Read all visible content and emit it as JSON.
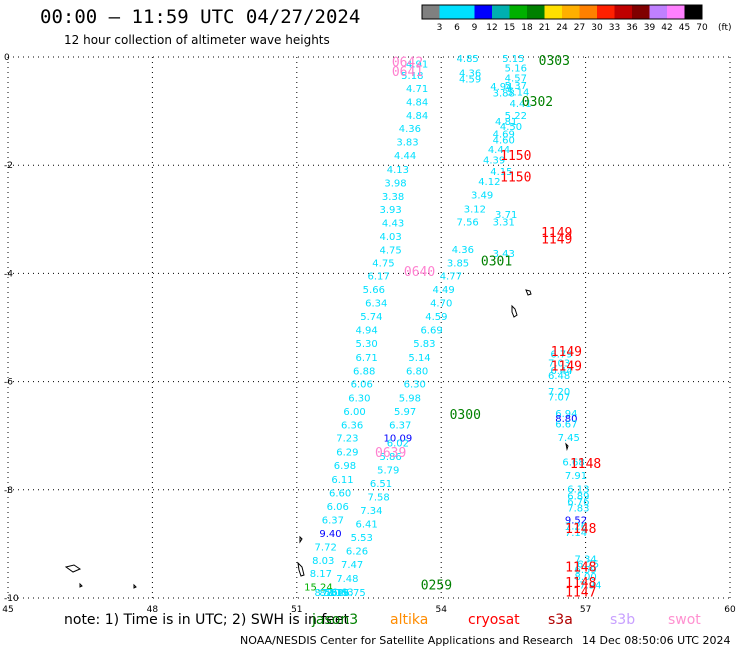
{
  "header": {
    "title": "00:00 – 11:59 UTC 04/27/2024",
    "subtitle": "12 hour collection of altimeter wave heights"
  },
  "footer": {
    "note": "note: 1) Time is in UTC; 2) SWH is in feet",
    "credit": "NOAA/NESDIS Center for Satellite Applications and Research",
    "timestamp": "14 Dec 08:50:06 UTC 2024"
  },
  "satellites": [
    {
      "name": "jason3",
      "color": "#008000"
    },
    {
      "name": "altika",
      "color": "#ff8c00"
    },
    {
      "name": "cryosat",
      "color": "#ff0000"
    },
    {
      "name": "s3a",
      "color": "#b00000"
    },
    {
      "name": "s3b",
      "color": "#c8a0ff"
    },
    {
      "name": "swot",
      "color": "#ff90d0"
    }
  ],
  "colorbar": {
    "labels": [
      "3",
      "6",
      "9",
      "12",
      "15",
      "18",
      "21",
      "24",
      "27",
      "30",
      "33",
      "36",
      "39",
      "42",
      "45",
      "70"
    ],
    "unit": "(ft)",
    "colors": [
      "#808080",
      "#00e0ff",
      "#00e0ff",
      "#0000ff",
      "#00b0b0",
      "#00b000",
      "#008000",
      "#ffe000",
      "#ffb000",
      "#ff8000",
      "#ff2000",
      "#c00000",
      "#800000",
      "#c080ff",
      "#ff80ff",
      "#000000"
    ]
  },
  "chart_data": {
    "type": "scatter",
    "xlim": [
      45,
      60
    ],
    "ylim": [
      -10,
      0
    ],
    "xticks": [
      "45",
      "48",
      "51",
      "54",
      "57",
      "60"
    ],
    "yticks": [
      "0",
      "-2",
      "-4",
      "-6",
      "-8",
      "-10"
    ],
    "grid": true,
    "labels": [
      {
        "x": 54.55,
        "y": -0.09,
        "t": "4.85",
        "c": "#00e0ff"
      },
      {
        "x": 55.5,
        "y": -0.09,
        "t": "5.15",
        "c": "#00e0ff"
      },
      {
        "x": 55.55,
        "y": -0.27,
        "t": "5.16",
        "c": "#00e0ff"
      },
      {
        "x": 54.6,
        "y": -0.36,
        "t": "4.36",
        "c": "#00e0ff"
      },
      {
        "x": 55.55,
        "y": -0.45,
        "t": "4.57",
        "c": "#00e0ff"
      },
      {
        "x": 54.6,
        "y": -0.47,
        "t": "4.59",
        "c": "#00e0ff"
      },
      {
        "x": 53.5,
        "y": -0.19,
        "t": "4.91",
        "c": "#00e0ff"
      },
      {
        "x": 53.4,
        "y": -0.41,
        "t": "5.18",
        "c": "#00e0ff"
      },
      {
        "x": 53.5,
        "y": -0.65,
        "t": "4.71",
        "c": "#00e0ff"
      },
      {
        "x": 53.5,
        "y": -0.9,
        "t": "4.84",
        "c": "#00e0ff"
      },
      {
        "x": 53.5,
        "y": -1.15,
        "t": "4.84",
        "c": "#00e0ff"
      },
      {
        "x": 53.35,
        "y": -1.39,
        "t": "4.36",
        "c": "#00e0ff"
      },
      {
        "x": 53.3,
        "y": -1.64,
        "t": "3.83",
        "c": "#00e0ff"
      },
      {
        "x": 53.25,
        "y": -1.89,
        "t": "4.44",
        "c": "#00e0ff"
      },
      {
        "x": 53.1,
        "y": -2.14,
        "t": "4.13",
        "c": "#00e0ff"
      },
      {
        "x": 53.05,
        "y": -2.39,
        "t": "3.98",
        "c": "#00e0ff"
      },
      {
        "x": 53.0,
        "y": -2.64,
        "t": "3.38",
        "c": "#00e0ff"
      },
      {
        "x": 52.95,
        "y": -2.88,
        "t": "3.93",
        "c": "#00e0ff"
      },
      {
        "x": 53.0,
        "y": -3.13,
        "t": "4.43",
        "c": "#00e0ff"
      },
      {
        "x": 52.95,
        "y": -3.38,
        "t": "4.03",
        "c": "#00e0ff"
      },
      {
        "x": 52.95,
        "y": -3.63,
        "t": "4.75",
        "c": "#00e0ff"
      },
      {
        "x": 52.8,
        "y": -3.87,
        "t": "4.75",
        "c": "#00e0ff"
      },
      {
        "x": 52.7,
        "y": -4.11,
        "t": "6.17",
        "c": "#00e0ff"
      },
      {
        "x": 52.6,
        "y": -4.36,
        "t": "5.66",
        "c": "#00e0ff"
      },
      {
        "x": 52.65,
        "y": -4.61,
        "t": "6.34",
        "c": "#00e0ff"
      },
      {
        "x": 52.55,
        "y": -4.86,
        "t": "5.74",
        "c": "#00e0ff"
      },
      {
        "x": 52.45,
        "y": -5.11,
        "t": "4.94",
        "c": "#00e0ff"
      },
      {
        "x": 52.45,
        "y": -5.36,
        "t": "5.30",
        "c": "#00e0ff"
      },
      {
        "x": 52.45,
        "y": -5.62,
        "t": "6.71",
        "c": "#00e0ff"
      },
      {
        "x": 52.4,
        "y": -5.87,
        "t": "6.88",
        "c": "#00e0ff"
      },
      {
        "x": 52.35,
        "y": -6.11,
        "t": "6.06",
        "c": "#00e0ff"
      },
      {
        "x": 52.3,
        "y": -6.37,
        "t": "6.30",
        "c": "#00e0ff"
      },
      {
        "x": 52.2,
        "y": -6.62,
        "t": "6.00",
        "c": "#00e0ff"
      },
      {
        "x": 52.15,
        "y": -6.87,
        "t": "6.36",
        "c": "#00e0ff"
      },
      {
        "x": 52.05,
        "y": -7.11,
        "t": "7.23",
        "c": "#00e0ff"
      },
      {
        "x": 52.05,
        "y": -7.37,
        "t": "6.29",
        "c": "#00e0ff"
      },
      {
        "x": 52.0,
        "y": -7.62,
        "t": "6.98",
        "c": "#00e0ff"
      },
      {
        "x": 51.95,
        "y": -7.87,
        "t": "6.11",
        "c": "#00e0ff"
      },
      {
        "x": 51.9,
        "y": -8.12,
        "t": "6.60",
        "c": "#00e0ff"
      },
      {
        "x": 51.85,
        "y": -8.37,
        "t": "6.06",
        "c": "#00e0ff"
      },
      {
        "x": 51.75,
        "y": -8.62,
        "t": "6.37",
        "c": "#00e0ff"
      },
      {
        "x": 51.7,
        "y": -8.87,
        "t": "9.40",
        "c": "#0000ff"
      },
      {
        "x": 51.6,
        "y": -9.12,
        "t": "7.72",
        "c": "#00e0ff"
      },
      {
        "x": 51.55,
        "y": -9.37,
        "t": "8.03",
        "c": "#00e0ff"
      },
      {
        "x": 51.5,
        "y": -9.61,
        "t": "8.17",
        "c": "#00e0ff"
      },
      {
        "x": 51.45,
        "y": -9.86,
        "t": "15.24",
        "c": "#00b000"
      },
      {
        "x": 55.25,
        "y": -0.61,
        "t": "4.94",
        "c": "#00e0ff"
      },
      {
        "x": 55.55,
        "y": -0.59,
        "t": "5.37",
        "c": "#00e0ff"
      },
      {
        "x": 55.3,
        "y": -0.73,
        "t": "3.88",
        "c": "#00e0ff"
      },
      {
        "x": 55.6,
        "y": -0.71,
        "t": "5.14",
        "c": "#00e0ff"
      },
      {
        "x": 55.65,
        "y": -0.92,
        "t": "4.41",
        "c": "#00e0ff"
      },
      {
        "x": 55.55,
        "y": -1.15,
        "t": "5.22",
        "c": "#00e0ff"
      },
      {
        "x": 55.35,
        "y": -1.26,
        "t": "4.81",
        "c": "#00e0ff"
      },
      {
        "x": 55.45,
        "y": -1.35,
        "t": "4.50",
        "c": "#00e0ff"
      },
      {
        "x": 55.3,
        "y": -1.49,
        "t": "4.69",
        "c": "#00e0ff"
      },
      {
        "x": 55.3,
        "y": -1.6,
        "t": "4.60",
        "c": "#00e0ff"
      },
      {
        "x": 55.2,
        "y": -1.77,
        "t": "4.44",
        "c": "#00e0ff"
      },
      {
        "x": 55.1,
        "y": -1.97,
        "t": "4.39",
        "c": "#00e0ff"
      },
      {
        "x": 55.25,
        "y": -2.18,
        "t": "4.15",
        "c": "#00e0ff"
      },
      {
        "x": 55.0,
        "y": -2.37,
        "t": "4.12",
        "c": "#00e0ff"
      },
      {
        "x": 54.85,
        "y": -2.62,
        "t": "3.49",
        "c": "#00e0ff"
      },
      {
        "x": 54.7,
        "y": -2.87,
        "t": "3.12",
        "c": "#00e0ff"
      },
      {
        "x": 55.35,
        "y": -2.98,
        "t": "3.71",
        "c": "#00e0ff"
      },
      {
        "x": 54.55,
        "y": -3.11,
        "t": "7.56",
        "c": "#00e0ff"
      },
      {
        "x": 55.3,
        "y": -3.11,
        "t": "3.31",
        "c": "#00e0ff"
      },
      {
        "x": 54.45,
        "y": -3.62,
        "t": "4.36",
        "c": "#00e0ff"
      },
      {
        "x": 55.3,
        "y": -3.7,
        "t": "3.43",
        "c": "#00e0ff"
      },
      {
        "x": 54.35,
        "y": -3.87,
        "t": "3.85",
        "c": "#00e0ff"
      },
      {
        "x": 54.2,
        "y": -4.11,
        "t": "4.77",
        "c": "#00e0ff"
      },
      {
        "x": 54.05,
        "y": -4.36,
        "t": "4.49",
        "c": "#00e0ff"
      },
      {
        "x": 54.0,
        "y": -4.61,
        "t": "4.70",
        "c": "#00e0ff"
      },
      {
        "x": 53.9,
        "y": -4.86,
        "t": "4.59",
        "c": "#00e0ff"
      },
      {
        "x": 53.8,
        "y": -5.11,
        "t": "6.69",
        "c": "#00e0ff"
      },
      {
        "x": 53.65,
        "y": -5.36,
        "t": "5.83",
        "c": "#00e0ff"
      },
      {
        "x": 53.55,
        "y": -5.62,
        "t": "5.14",
        "c": "#00e0ff"
      },
      {
        "x": 53.5,
        "y": -5.87,
        "t": "6.80",
        "c": "#00e0ff"
      },
      {
        "x": 53.45,
        "y": -6.11,
        "t": "6.30",
        "c": "#00e0ff"
      },
      {
        "x": 53.35,
        "y": -6.37,
        "t": "5.98",
        "c": "#00e0ff"
      },
      {
        "x": 53.25,
        "y": -6.62,
        "t": "5.97",
        "c": "#00e0ff"
      },
      {
        "x": 53.15,
        "y": -6.87,
        "t": "6.37",
        "c": "#00e0ff"
      },
      {
        "x": 53.1,
        "y": -7.11,
        "t": "10.09",
        "c": "#0000ff"
      },
      {
        "x": 53.1,
        "y": -7.2,
        "t": "6.02",
        "c": "#00e0ff"
      },
      {
        "x": 52.95,
        "y": -7.45,
        "t": "5.86",
        "c": "#00e0ff"
      },
      {
        "x": 52.9,
        "y": -7.7,
        "t": "5.79",
        "c": "#00e0ff"
      },
      {
        "x": 52.75,
        "y": -7.95,
        "t": "6.51",
        "c": "#00e0ff"
      },
      {
        "x": 52.7,
        "y": -8.2,
        "t": "7.58",
        "c": "#00e0ff"
      },
      {
        "x": 52.55,
        "y": -8.45,
        "t": "7.34",
        "c": "#00e0ff"
      },
      {
        "x": 52.45,
        "y": -8.7,
        "t": "6.41",
        "c": "#00e0ff"
      },
      {
        "x": 52.35,
        "y": -8.95,
        "t": "5.53",
        "c": "#00e0ff"
      },
      {
        "x": 52.25,
        "y": -9.2,
        "t": "6.26",
        "c": "#00e0ff"
      },
      {
        "x": 52.15,
        "y": -9.45,
        "t": "7.47",
        "c": "#00e0ff"
      },
      {
        "x": 52.05,
        "y": -9.7,
        "t": "7.48",
        "c": "#00e0ff"
      },
      {
        "x": 51.95,
        "y": -9.95,
        "t": "6.63",
        "c": "#00e0ff"
      },
      {
        "x": 51.85,
        "y": -10.2,
        "t": "8.19",
        "c": "#00e0ff"
      },
      {
        "x": 51.75,
        "y": -10.45,
        "t": "7.62",
        "c": "#00e0ff"
      },
      {
        "x": 51.85,
        "y": -10.7,
        "t": "7.39",
        "c": "#00e0ff"
      },
      {
        "x": 52.2,
        "y": -10.8,
        "t": "6.75",
        "c": "#00e0ff"
      },
      {
        "x": 51.7,
        "y": -10.95,
        "t": "8.11",
        "c": "#00e0ff"
      },
      {
        "x": 51.6,
        "y": -11.2,
        "t": "8.58",
        "c": "#00e0ff"
      },
      {
        "x": 56.5,
        "y": -5.55,
        "t": "6.79",
        "c": "#00e0ff"
      },
      {
        "x": 56.45,
        "y": -5.72,
        "t": "7.03",
        "c": "#00e0ff"
      },
      {
        "x": 56.5,
        "y": -5.86,
        "t": "6.44",
        "c": "#00e0ff"
      },
      {
        "x": 56.45,
        "y": -5.95,
        "t": "6.48",
        "c": "#00e0ff"
      },
      {
        "x": 56.45,
        "y": -6.25,
        "t": "7.20",
        "c": "#00e0ff"
      },
      {
        "x": 56.45,
        "y": -6.35,
        "t": "7.07",
        "c": "#00e0ff"
      },
      {
        "x": 56.6,
        "y": -6.65,
        "t": "6.94",
        "c": "#00e0ff"
      },
      {
        "x": 56.6,
        "y": -6.75,
        "t": "8.80",
        "c": "#0000ff"
      },
      {
        "x": 56.6,
        "y": -6.85,
        "t": "6.67",
        "c": "#00e0ff"
      },
      {
        "x": 56.65,
        "y": -7.1,
        "t": "7.45",
        "c": "#00e0ff"
      },
      {
        "x": 56.75,
        "y": -7.55,
        "t": "6.68",
        "c": "#00e0ff"
      },
      {
        "x": 56.8,
        "y": -7.8,
        "t": "7.91",
        "c": "#00e0ff"
      },
      {
        "x": 56.85,
        "y": -8.05,
        "t": "6.13",
        "c": "#00e0ff"
      },
      {
        "x": 56.85,
        "y": -8.18,
        "t": "6.89",
        "c": "#00e0ff"
      },
      {
        "x": 56.85,
        "y": -8.28,
        "t": "6.76",
        "c": "#00e0ff"
      },
      {
        "x": 56.85,
        "y": -8.4,
        "t": "7.83",
        "c": "#00e0ff"
      },
      {
        "x": 56.8,
        "y": -8.62,
        "t": "9.52",
        "c": "#0000ff"
      },
      {
        "x": 56.8,
        "y": -8.73,
        "t": "7.26",
        "c": "#00e0ff"
      },
      {
        "x": 56.8,
        "y": -8.85,
        "t": "7.14",
        "c": "#00e0ff"
      },
      {
        "x": 57.0,
        "y": -9.34,
        "t": "7.34",
        "c": "#00e0ff"
      },
      {
        "x": 57.05,
        "y": -9.44,
        "t": "6.75",
        "c": "#00e0ff"
      },
      {
        "x": 57.0,
        "y": -9.54,
        "t": "6.59",
        "c": "#00e0ff"
      },
      {
        "x": 57.0,
        "y": -9.67,
        "t": "8.00",
        "c": "#00e0ff"
      },
      {
        "x": 57.1,
        "y": -9.82,
        "t": "7.94",
        "c": "#00e0ff"
      }
    ],
    "time_labels": [
      {
        "x": 56.35,
        "y": -0.07,
        "t": "0303",
        "c": "#008000"
      },
      {
        "x": 53.3,
        "y": -0.1,
        "t": "0642",
        "c": "#ff80d0"
      },
      {
        "x": 53.3,
        "y": -0.28,
        "t": "0641",
        "c": "#ff80d0"
      },
      {
        "x": 56.0,
        "y": -0.83,
        "t": "0302",
        "c": "#008000"
      },
      {
        "x": 55.55,
        "y": -1.83,
        "t": "1150",
        "c": "#ff0000"
      },
      {
        "x": 55.55,
        "y": -2.23,
        "t": "1150",
        "c": "#ff0000"
      },
      {
        "x": 56.4,
        "y": -3.25,
        "t": "1149",
        "c": "#ff0000"
      },
      {
        "x": 56.4,
        "y": -3.37,
        "t": "1149",
        "c": "#ff0000"
      },
      {
        "x": 55.15,
        "y": -3.78,
        "t": "0301",
        "c": "#008000"
      },
      {
        "x": 53.55,
        "y": -3.97,
        "t": "0640",
        "c": "#ff80d0"
      },
      {
        "x": 56.6,
        "y": -5.45,
        "t": "1149",
        "c": "#ff0000"
      },
      {
        "x": 56.6,
        "y": -5.72,
        "t": "1149",
        "c": "#ff0000"
      },
      {
        "x": 54.5,
        "y": -6.62,
        "t": "0300",
        "c": "#008000"
      },
      {
        "x": 52.95,
        "y": -7.32,
        "t": "0639",
        "c": "#ff80d0"
      },
      {
        "x": 57.0,
        "y": -7.52,
        "t": "1148",
        "c": "#ff0000"
      },
      {
        "x": 56.9,
        "y": -8.72,
        "t": "1148",
        "c": "#ff0000"
      },
      {
        "x": 53.9,
        "y": -9.77,
        "t": "0259",
        "c": "#008000"
      },
      {
        "x": 56.9,
        "y": -9.44,
        "t": "1148",
        "c": "#ff0000"
      },
      {
        "x": 56.9,
        "y": -9.72,
        "t": "1148",
        "c": "#ff0000"
      },
      {
        "x": 56.9,
        "y": -9.9,
        "t": "1147",
        "c": "#ff0000"
      }
    ]
  }
}
